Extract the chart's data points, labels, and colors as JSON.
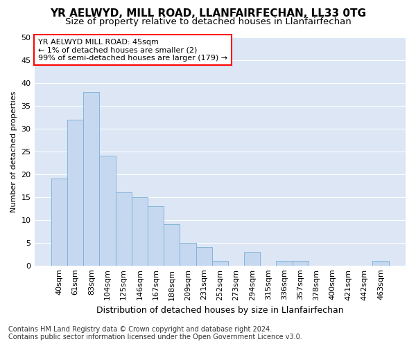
{
  "title": "YR AELWYD, MILL ROAD, LLANFAIRFECHAN, LL33 0TG",
  "subtitle": "Size of property relative to detached houses in Llanfairfechan",
  "xlabel": "Distribution of detached houses by size in Llanfairfechan",
  "ylabel": "Number of detached properties",
  "categories": [
    "40sqm",
    "61sqm",
    "83sqm",
    "104sqm",
    "125sqm",
    "146sqm",
    "167sqm",
    "188sqm",
    "209sqm",
    "231sqm",
    "252sqm",
    "273sqm",
    "294sqm",
    "315sqm",
    "336sqm",
    "357sqm",
    "378sqm",
    "400sqm",
    "421sqm",
    "442sqm",
    "463sqm"
  ],
  "values": [
    19,
    32,
    38,
    24,
    16,
    15,
    13,
    9,
    5,
    4,
    1,
    0,
    3,
    0,
    1,
    1,
    0,
    0,
    0,
    0,
    1
  ],
  "bar_color": "#c5d8f0",
  "bar_edge_color": "#7bafd4",
  "ylim": [
    0,
    50
  ],
  "yticks": [
    0,
    5,
    10,
    15,
    20,
    25,
    30,
    35,
    40,
    45,
    50
  ],
  "annotation_line1": "YR AELWYD MILL ROAD: 45sqm",
  "annotation_line2": "← 1% of detached houses are smaller (2)",
  "annotation_line3": "99% of semi-detached houses are larger (179) →",
  "footer_line1": "Contains HM Land Registry data © Crown copyright and database right 2024.",
  "footer_line2": "Contains public sector information licensed under the Open Government Licence v3.0.",
  "fig_bg_color": "#ffffff",
  "plot_bg_color": "#dce6f5",
  "grid_color": "#ffffff",
  "title_fontsize": 11,
  "subtitle_fontsize": 9.5,
  "xlabel_fontsize": 9,
  "ylabel_fontsize": 8,
  "tick_fontsize": 8,
  "annotation_fontsize": 8,
  "footer_fontsize": 7
}
